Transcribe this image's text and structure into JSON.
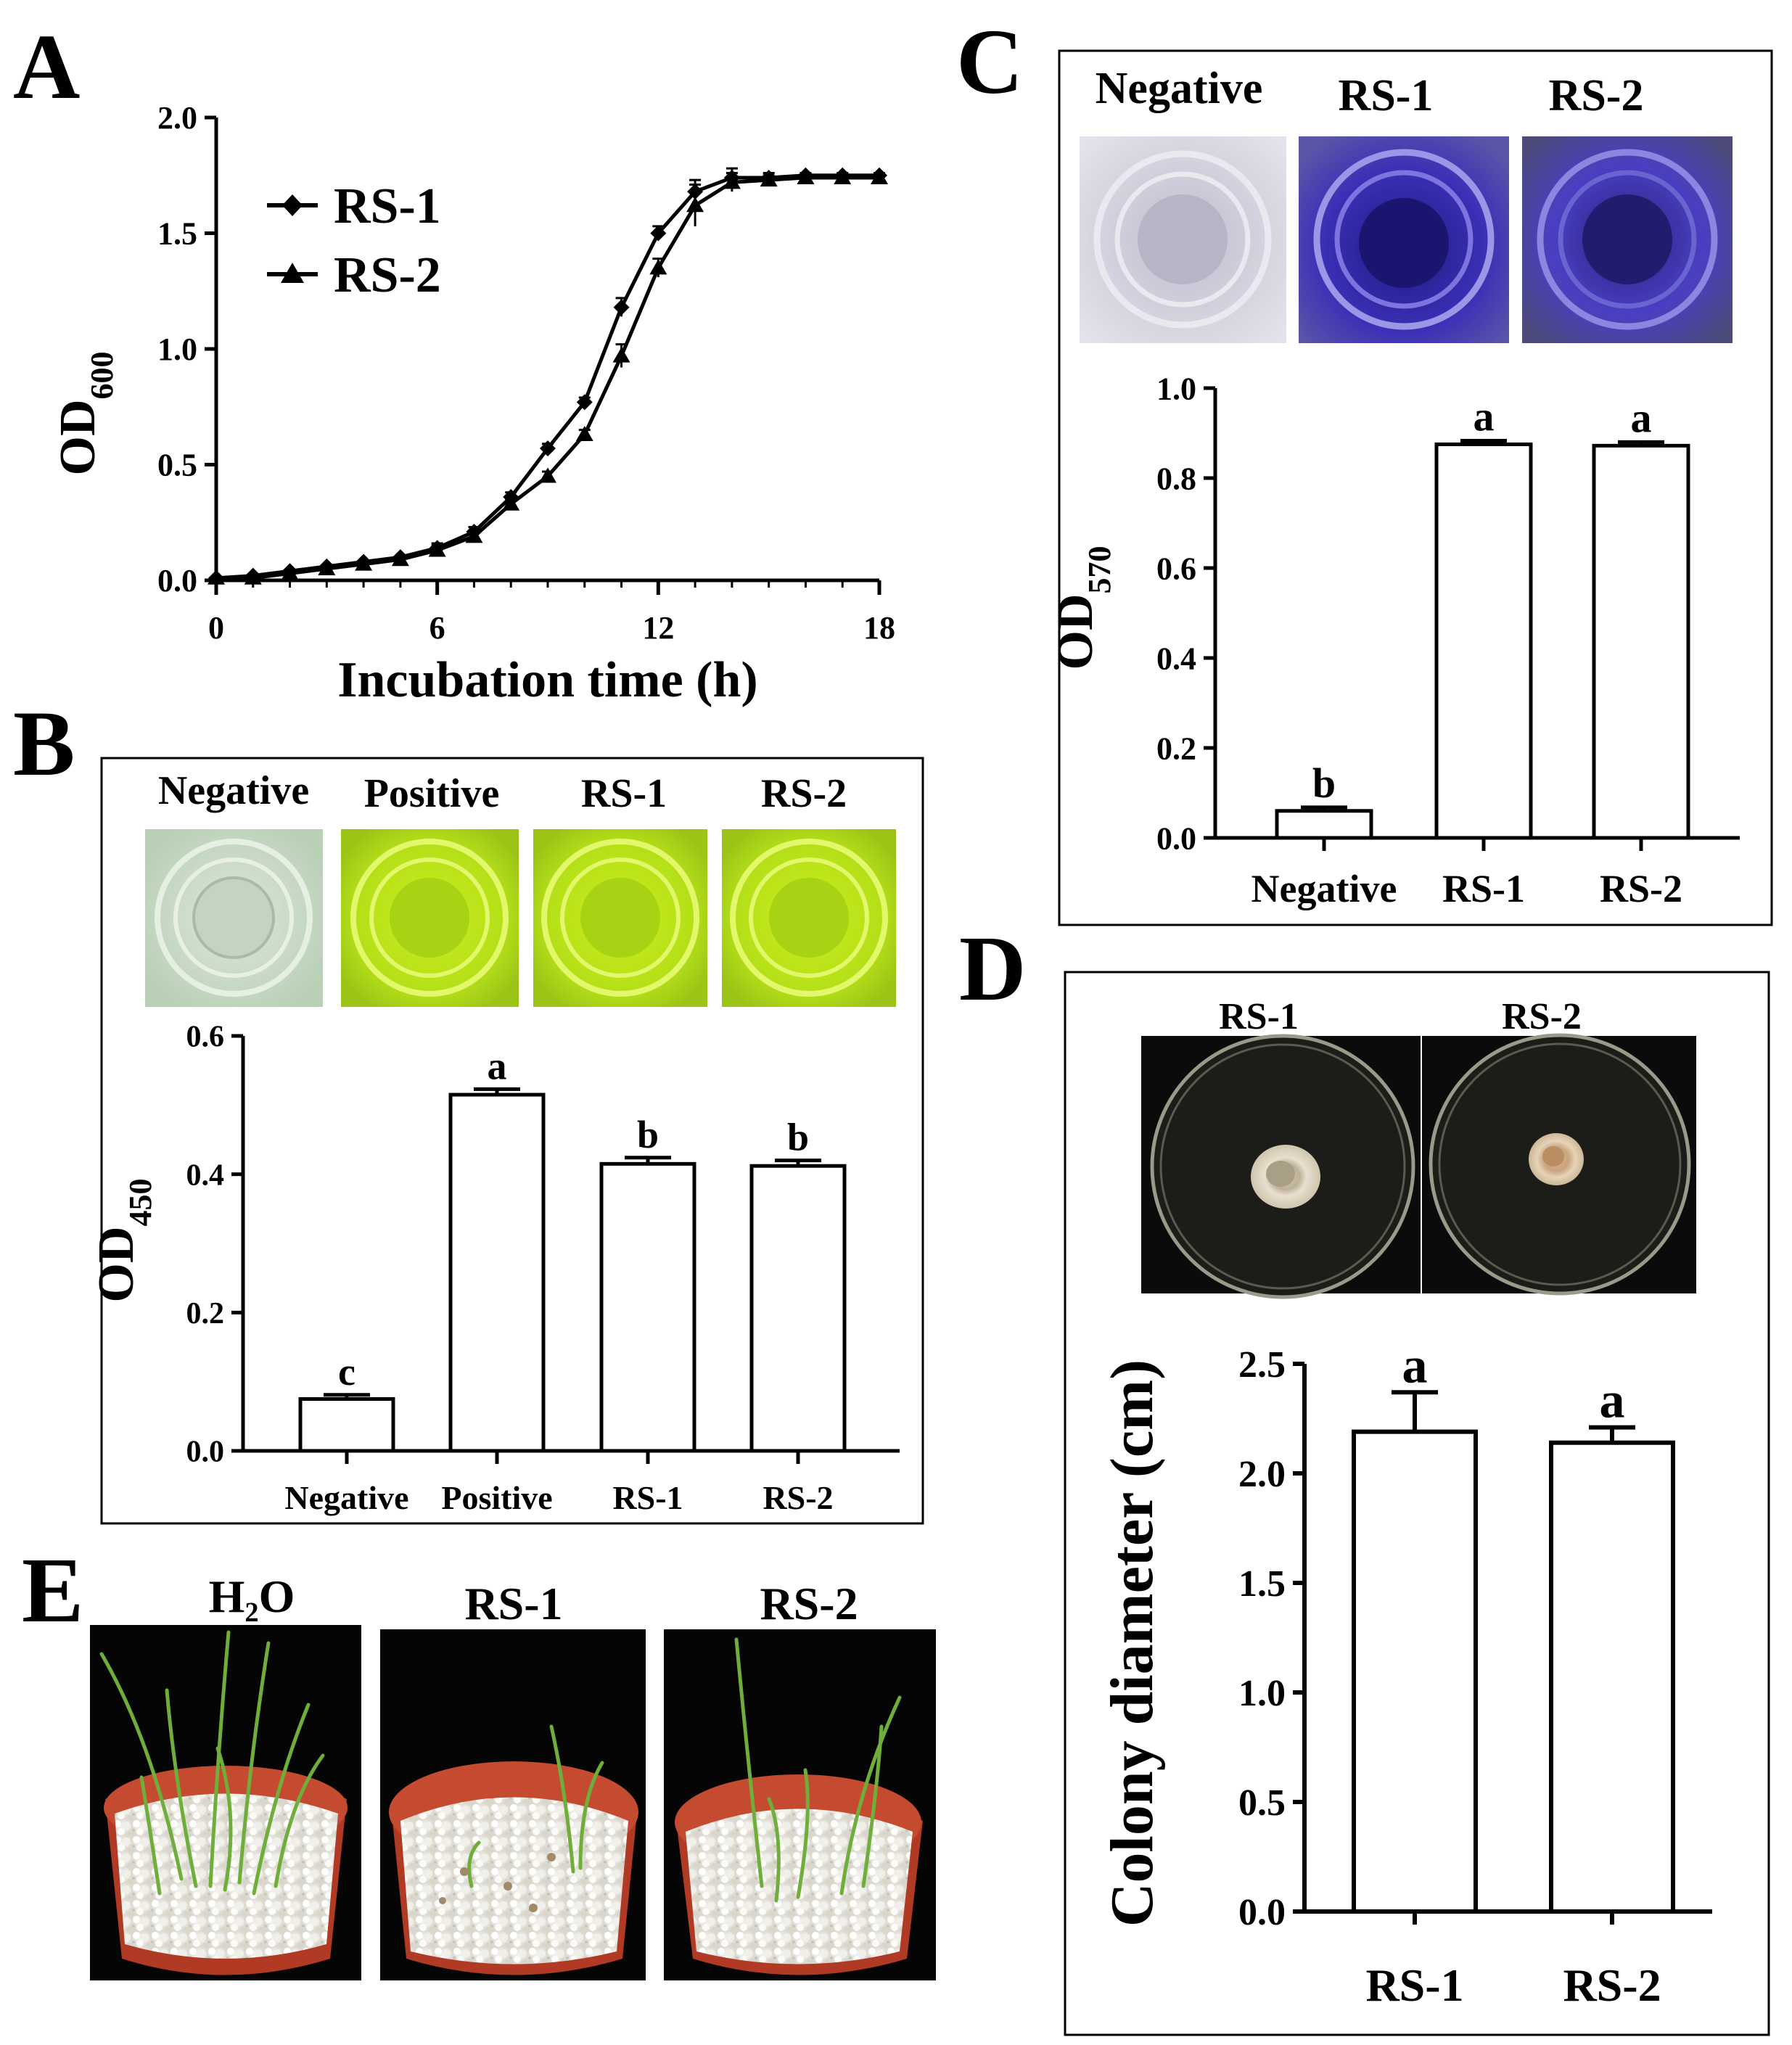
{
  "panels": {
    "A": {
      "letter": "A"
    },
    "B": {
      "letter": "B",
      "wells": [
        "Negative",
        "Positive",
        "RS-1",
        "RS-2"
      ]
    },
    "C": {
      "letter": "C",
      "wells": [
        "Negative",
        "RS-1",
        "RS-2"
      ]
    },
    "D": {
      "letter": "D",
      "plates": [
        "RS-1",
        "RS-2"
      ]
    },
    "E": {
      "letter": "E",
      "pots": [
        "H₂O",
        "RS-1",
        "RS-2"
      ]
    }
  },
  "colors": {
    "axis": "#000000",
    "well_negative_b": "#c9dcc8",
    "well_yellow": "#b7e21a",
    "well_negative_c": "#cfcfd8",
    "well_blue": "#3a2fb0",
    "plate_bg": "#0a0a0a",
    "pot": "#b8402a",
    "perlite": "#eeeeea",
    "leaf": "#6aa23a"
  },
  "chart_data": [
    {
      "id": "A",
      "type": "line",
      "title": "",
      "xlabel": "Incubation time (h)",
      "ylabel": "OD600",
      "ylabel_main": "OD",
      "ylabel_sub": "600",
      "xlim": [
        0,
        18
      ],
      "ylim": [
        0,
        2.0
      ],
      "xticks": [
        0,
        6,
        12,
        18
      ],
      "yticks": [
        0.0,
        0.5,
        1.0,
        1.5,
        2.0
      ],
      "ytick_labels": [
        "0.0",
        "0.5",
        "1.0",
        "1.5",
        "2.0"
      ],
      "legend_position": "top-left",
      "series": [
        {
          "name": "RS-1",
          "marker": "diamond",
          "x": [
            0,
            1,
            2,
            3,
            4,
            5,
            6,
            7,
            8,
            9,
            10,
            11,
            12,
            13,
            14,
            15,
            16,
            17,
            18
          ],
          "y": [
            0.01,
            0.02,
            0.04,
            0.06,
            0.08,
            0.1,
            0.14,
            0.21,
            0.36,
            0.57,
            0.77,
            1.18,
            1.5,
            1.68,
            1.74,
            1.74,
            1.75,
            1.75,
            1.75
          ],
          "err": [
            0,
            0,
            0,
            0,
            0,
            0,
            0.02,
            0.02,
            0.02,
            0.02,
            0.02,
            0.04,
            0.03,
            0.05,
            0.04,
            0.02,
            0.01,
            0.01,
            0.01
          ]
        },
        {
          "name": "RS-2",
          "marker": "triangle",
          "x": [
            0,
            1,
            2,
            3,
            4,
            5,
            6,
            7,
            8,
            9,
            10,
            11,
            12,
            13,
            14,
            15,
            16,
            17,
            18
          ],
          "y": [
            0.01,
            0.01,
            0.03,
            0.05,
            0.07,
            0.09,
            0.13,
            0.19,
            0.33,
            0.45,
            0.63,
            0.97,
            1.35,
            1.62,
            1.72,
            1.73,
            1.74,
            1.74,
            1.74
          ],
          "err": [
            0,
            0,
            0,
            0,
            0,
            0,
            0.02,
            0.02,
            0.02,
            0.02,
            0.02,
            0.05,
            0.04,
            0.09,
            0.04,
            0.02,
            0.01,
            0.01,
            0.01
          ]
        }
      ]
    },
    {
      "id": "B",
      "type": "bar",
      "categories": [
        "Negative",
        "Positive",
        "RS-1",
        "RS-2"
      ],
      "values": [
        0.075,
        0.515,
        0.415,
        0.412
      ],
      "errors": [
        0.006,
        0.008,
        0.009,
        0.008
      ],
      "letters": [
        "c",
        "a",
        "b",
        "b"
      ],
      "ylabel": "OD450",
      "ylabel_main": "OD",
      "ylabel_sub": "450",
      "ylim": [
        0,
        0.6
      ],
      "yticks": [
        0.0,
        0.2,
        0.4,
        0.6
      ],
      "ytick_labels": [
        "0.0",
        "0.2",
        "0.4",
        "0.6"
      ]
    },
    {
      "id": "C",
      "type": "bar",
      "categories": [
        "Negative",
        "RS-1",
        "RS-2"
      ],
      "values": [
        0.06,
        0.875,
        0.872
      ],
      "errors": [
        0.008,
        0.008,
        0.008
      ],
      "letters": [
        "b",
        "a",
        "a"
      ],
      "ylabel": "OD570",
      "ylabel_main": "OD",
      "ylabel_sub": "570",
      "ylim": [
        0,
        1.0
      ],
      "yticks": [
        0.0,
        0.2,
        0.4,
        0.6,
        0.8,
        1.0
      ],
      "ytick_labels": [
        "0.0",
        "0.2",
        "0.4",
        "0.6",
        "0.8",
        "1.0"
      ]
    },
    {
      "id": "D",
      "type": "bar",
      "categories": [
        "RS-1",
        "RS-2"
      ],
      "values": [
        2.19,
        2.14
      ],
      "errors": [
        0.18,
        0.07
      ],
      "letters": [
        "a",
        "a"
      ],
      "ylabel": "Colony diameter (cm)",
      "ylim": [
        0,
        2.5
      ],
      "yticks": [
        0.0,
        0.5,
        1.0,
        1.5,
        2.0,
        2.5
      ],
      "ytick_labels": [
        "0.0",
        "0.5",
        "1.0",
        "1.5",
        "2.0",
        "2.5"
      ]
    }
  ]
}
